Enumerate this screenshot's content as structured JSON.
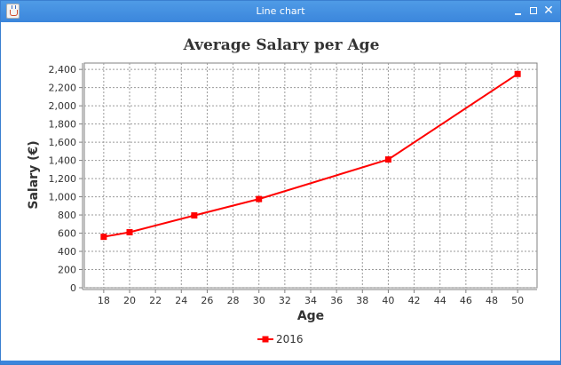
{
  "window": {
    "title": "Line chart",
    "icon": "java-cup-icon",
    "buttons": {
      "minimize": "minimize-icon",
      "maximize": "maximize-icon",
      "close": "close-icon",
      "close_glyph": "✕"
    }
  },
  "chart_data": {
    "type": "line",
    "title": "Average Salary per Age",
    "xlabel": "Age",
    "ylabel": "Salary (€)",
    "xlim": [
      16.5,
      51.5
    ],
    "ylim": [
      0,
      2470
    ],
    "xticks": [
      "18",
      "20",
      "22",
      "24",
      "26",
      "28",
      "30",
      "32",
      "34",
      "36",
      "38",
      "40",
      "42",
      "44",
      "46",
      "48",
      "50"
    ],
    "yticks": [
      "0",
      "200",
      "400",
      "600",
      "800",
      "1,000",
      "1,200",
      "1,400",
      "1,600",
      "1,800",
      "2,000",
      "2,200",
      "2,400"
    ],
    "grid": true,
    "legend_position": "bottom",
    "series": [
      {
        "name": "2016",
        "color": "#ff0000",
        "marker": "square",
        "x": [
          18,
          20,
          25,
          30,
          40,
          50
        ],
        "y": [
          560,
          610,
          795,
          975,
          1410,
          2350
        ]
      }
    ]
  }
}
